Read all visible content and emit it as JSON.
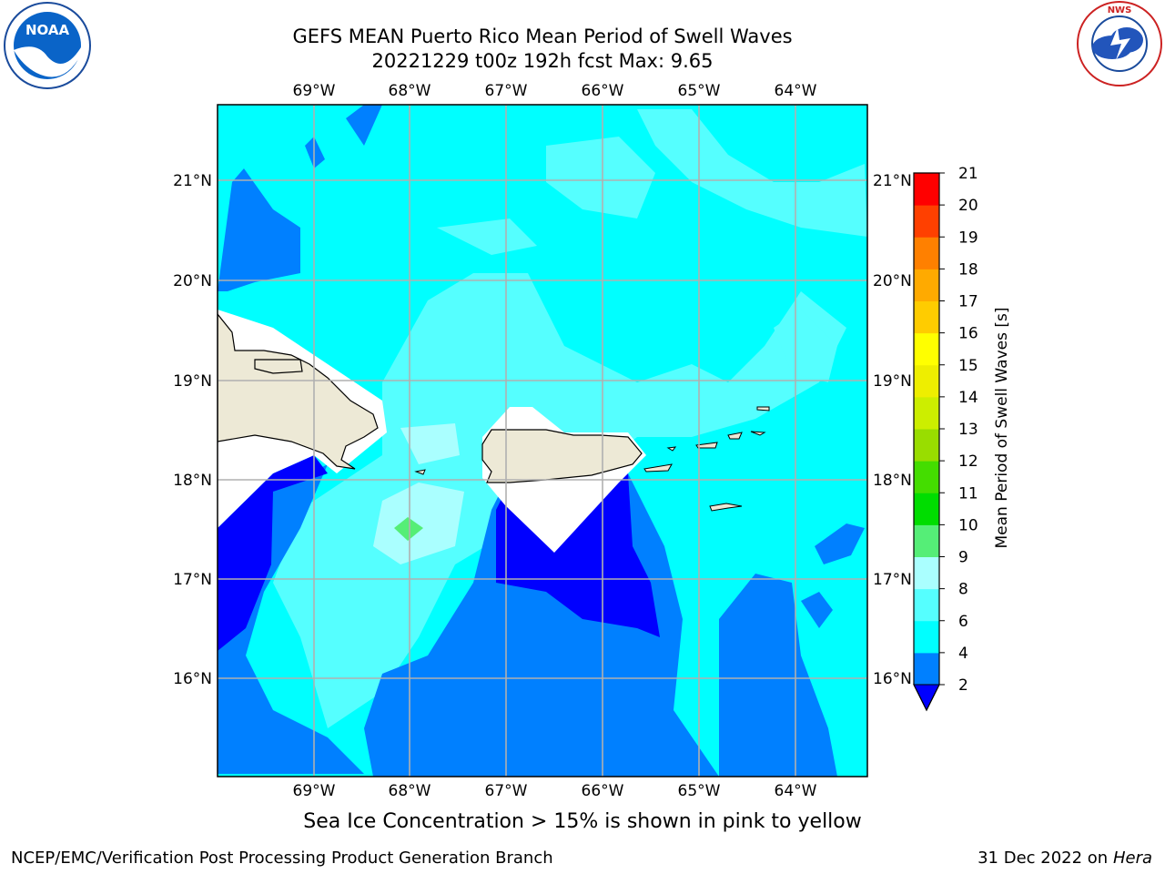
{
  "title_line1": "GEFS MEAN Puerto Rico Mean Period of Swell Waves",
  "title_line2": "20221229 t00z 192h fcst   Max: 9.65",
  "lon_labels": [
    "69°W",
    "68°W",
    "67°W",
    "66°W",
    "65°W",
    "64°W"
  ],
  "lat_labels": [
    "21°N",
    "20°N",
    "19°N",
    "18°N",
    "17°N",
    "16°N"
  ],
  "colorbar": {
    "label": "Mean Period of Swell Waves [s]",
    "ticks": [
      "2",
      "4",
      "6",
      "8",
      "9",
      "10",
      "11",
      "12",
      "13",
      "14",
      "15",
      "16",
      "17",
      "18",
      "19",
      "20",
      "21"
    ],
    "colors": [
      "#0000ff",
      "#0080ff",
      "#00ffff",
      "#55ffff",
      "#aaffff",
      "#55ee77",
      "#00dd00",
      "#44dd00",
      "#99dd00",
      "#ccee00",
      "#eeee00",
      "#ffff00",
      "#ffcc00",
      "#ffaa00",
      "#ff8000",
      "#ff4000",
      "#ff0000"
    ],
    "extend_color": "#0000ff"
  },
  "caption": "Sea Ice Concentration > 15% is shown in pink to yellow",
  "footer_left": "NCEP/EMC/Verification Post Processing Product Generation Branch",
  "footer_right_prefix": "31 Dec 2022 on",
  "footer_right_machine": "Hera",
  "logos": {
    "left": "NOAA",
    "left_ring": "NATIONAL OCEANIC AND ATMOSPHERIC ADMINISTRATION · U.S. DEPARTMENT OF COMMERCE",
    "right_ring": "NATIONAL WEATHER SERVICE"
  }
}
